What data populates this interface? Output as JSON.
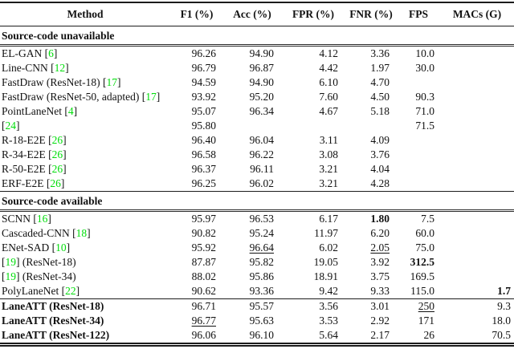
{
  "colors": {
    "citation_green": "#00dd0a",
    "rule_dark": "#1c1c1c"
  },
  "table": {
    "headers": [
      "Method",
      "F1 (%)",
      "Acc (%)",
      "FPR (%)",
      "FNR (%)",
      "FPS",
      "MACs (G)"
    ],
    "sections": [
      {
        "label": "Source-code unavailable",
        "bold_methods": false,
        "rows": [
          {
            "method": "EL-GAN [6]",
            "cells": [
              {
                "v": "96.26"
              },
              {
                "v": "94.90"
              },
              {
                "v": "4.12"
              },
              {
                "v": "3.36"
              },
              {
                "v": "10.0"
              },
              {
                "v": ""
              }
            ]
          },
          {
            "method": "Line-CNN [12]",
            "cells": [
              {
                "v": "96.79"
              },
              {
                "v": "96.87"
              },
              {
                "v": "4.42"
              },
              {
                "v": "1.97"
              },
              {
                "v": "30.0"
              },
              {
                "v": ""
              }
            ]
          },
          {
            "method": "FastDraw (ResNet-18) [17]",
            "cells": [
              {
                "v": "94.59"
              },
              {
                "v": "94.90"
              },
              {
                "v": "6.10"
              },
              {
                "v": "4.70"
              },
              {
                "v": ""
              },
              {
                "v": ""
              }
            ]
          },
          {
            "method": "FastDraw (ResNet-50, adapted) [17]",
            "cells": [
              {
                "v": "93.92"
              },
              {
                "v": "95.20"
              },
              {
                "v": "7.60"
              },
              {
                "v": "4.50"
              },
              {
                "v": "90.3"
              },
              {
                "v": ""
              }
            ]
          },
          {
            "method": "PointLaneNet [4]",
            "cells": [
              {
                "v": "95.07"
              },
              {
                "v": "96.34"
              },
              {
                "v": "4.67"
              },
              {
                "v": "5.18"
              },
              {
                "v": "71.0"
              },
              {
                "v": ""
              }
            ]
          },
          {
            "method": "[24]",
            "cells": [
              {
                "v": "95.80"
              },
              {
                "v": ""
              },
              {
                "v": ""
              },
              {
                "v": ""
              },
              {
                "v": "71.5"
              },
              {
                "v": ""
              }
            ]
          },
          {
            "method": "R-18-E2E [26]",
            "cells": [
              {
                "v": "96.40"
              },
              {
                "v": "96.04"
              },
              {
                "v": "3.11"
              },
              {
                "v": "4.09"
              },
              {
                "v": ""
              },
              {
                "v": ""
              }
            ]
          },
          {
            "method": "R-34-E2E [26]",
            "cells": [
              {
                "v": "96.58"
              },
              {
                "v": "96.22"
              },
              {
                "v": "3.08"
              },
              {
                "v": "3.76"
              },
              {
                "v": ""
              },
              {
                "v": ""
              }
            ]
          },
          {
            "method": "R-50-E2E [26]",
            "cells": [
              {
                "v": "96.37"
              },
              {
                "v": "96.11"
              },
              {
                "v": "3.21"
              },
              {
                "v": "4.04"
              },
              {
                "v": ""
              },
              {
                "v": ""
              }
            ]
          },
          {
            "method": "ERF-E2E [26]",
            "cells": [
              {
                "v": "96.25"
              },
              {
                "v": "96.02"
              },
              {
                "v": "3.21"
              },
              {
                "v": "4.28"
              },
              {
                "v": ""
              },
              {
                "v": ""
              }
            ]
          }
        ]
      },
      {
        "label": "Source-code available",
        "bold_methods": false,
        "rows": [
          {
            "method": "SCNN [16]",
            "cells": [
              {
                "v": "95.97"
              },
              {
                "v": "96.53"
              },
              {
                "v": "6.17"
              },
              {
                "v": "1.80",
                "b": true
              },
              {
                "v": "7.5"
              },
              {
                "v": ""
              }
            ]
          },
          {
            "method": "Cascaded-CNN [18]",
            "cells": [
              {
                "v": "90.82"
              },
              {
                "v": "95.24"
              },
              {
                "v": "11.97"
              },
              {
                "v": "6.20"
              },
              {
                "v": "60.0"
              },
              {
                "v": ""
              }
            ]
          },
          {
            "method": "ENet-SAD [10]",
            "cells": [
              {
                "v": "95.92"
              },
              {
                "v": "96.64",
                "u": true
              },
              {
                "v": "6.02"
              },
              {
                "v": "2.05",
                "u": true
              },
              {
                "v": "75.0"
              },
              {
                "v": ""
              }
            ]
          },
          {
            "method": "[19] (ResNet-18)",
            "cells": [
              {
                "v": "87.87"
              },
              {
                "v": "95.82"
              },
              {
                "v": "19.05"
              },
              {
                "v": "3.92"
              },
              {
                "v": "312.5",
                "b": true
              },
              {
                "v": ""
              }
            ]
          },
          {
            "method": "[19] (ResNet-34)",
            "cells": [
              {
                "v": "88.02"
              },
              {
                "v": "95.86"
              },
              {
                "v": "18.91"
              },
              {
                "v": "3.75"
              },
              {
                "v": "169.5"
              },
              {
                "v": ""
              }
            ]
          },
          {
            "method": "PolyLaneNet [22]",
            "cells": [
              {
                "v": "90.62"
              },
              {
                "v": "93.36"
              },
              {
                "v": "9.42"
              },
              {
                "v": "9.33"
              },
              {
                "v": "115.0"
              },
              {
                "v": "1.7",
                "b": true
              }
            ]
          }
        ]
      },
      {
        "label": "",
        "bold_methods": true,
        "rows": [
          {
            "method": "LaneATT (ResNet-18)",
            "cells": [
              {
                "v": "96.71"
              },
              {
                "v": "95.57"
              },
              {
                "v": "3.56"
              },
              {
                "v": "3.01"
              },
              {
                "v": "250",
                "u": true
              },
              {
                "v": "9.3"
              }
            ]
          },
          {
            "method": "LaneATT (ResNet-34)",
            "cells": [
              {
                "v": "96.77",
                "u": true
              },
              {
                "v": "95.63"
              },
              {
                "v": "3.53"
              },
              {
                "v": "2.92"
              },
              {
                "v": "171"
              },
              {
                "v": "18.0"
              }
            ]
          },
          {
            "method": "LaneATT (ResNet-122)",
            "cells": [
              {
                "v": "96.06"
              },
              {
                "v": "96.10"
              },
              {
                "v": "5.64"
              },
              {
                "v": "2.17"
              },
              {
                "v": "26"
              },
              {
                "v": "70.5"
              }
            ]
          }
        ]
      }
    ]
  }
}
